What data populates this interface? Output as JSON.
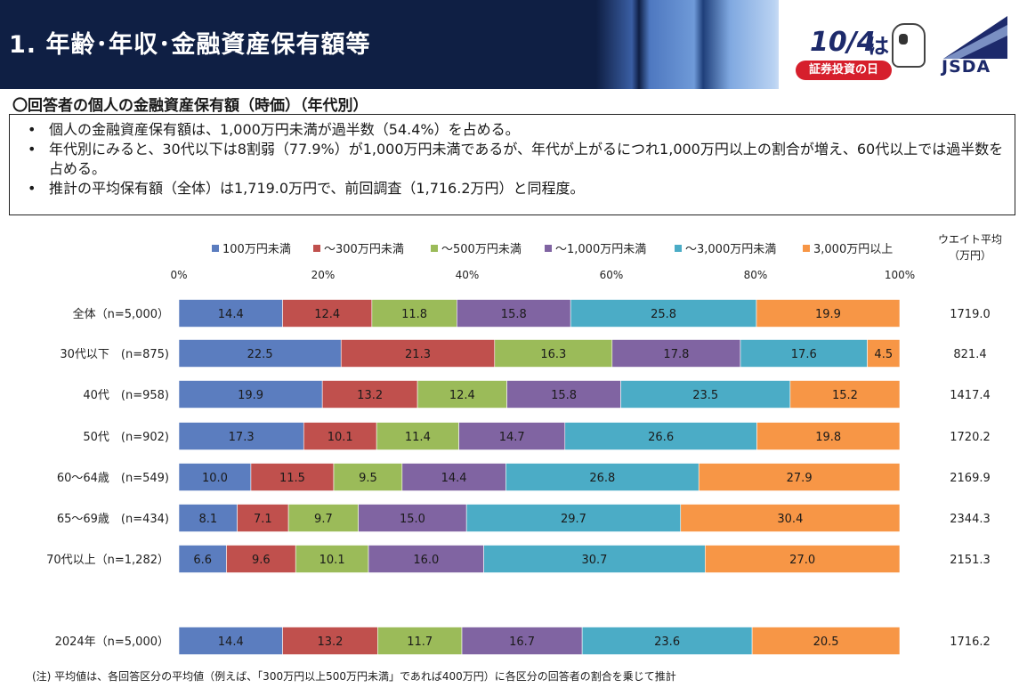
{
  "header": {
    "title": "1. 年齢･年収･金融資産保有額等",
    "logo_date": "10/4",
    "logo_wa": "は",
    "logo_event": "証券投資の日",
    "org": "JSDA"
  },
  "subtitle": "〇回答者の個人の金融資産保有額（時価）（年代別）",
  "summary": [
    "個人の金融資産保有額は、1,000万円未満が過半数（54.4%）を占める。",
    "年代別にみると、30代以下は8割弱（77.9%）が1,000万円未満であるが、年代が上がるにつれ1,000万円以上の割合が増え、60代以上では過半数を占める。",
    "推計の平均保有額（全体）は1,719.0万円で、前回調査（1,716.2万円）と同程度。"
  ],
  "unit_label_1": "ウエイト平均",
  "unit_label_2": "（万円）",
  "footnote": "(注) 平均値は、各回答区分の平均値（例えば、「300万円以上500万円未満」であれば400万円）に各区分の回答者の割合を乗じて推計",
  "colors": {
    "header_bg": "#0f1f44",
    "series": [
      "#5b7dbf",
      "#c0504d",
      "#9bbb59",
      "#8064a2",
      "#4bacc6",
      "#f79646"
    ]
  },
  "chart_data": {
    "type": "bar",
    "orientation": "horizontal-stacked-100",
    "xlim": [
      0,
      100
    ],
    "ticks": [
      "0%",
      "20%",
      "40%",
      "60%",
      "80%",
      "100%"
    ],
    "tick_values": [
      0,
      20,
      40,
      60,
      80,
      100
    ],
    "legend": [
      "100万円未満",
      "～300万円未満",
      "～500万円未満",
      "～1,000万円未満",
      "～3,000万円未満",
      "3,000万円以上"
    ],
    "rows": [
      {
        "label": "全体（n=5,000）",
        "values": [
          "14.4",
          "12.4",
          "11.8",
          "15.8",
          "25.8",
          "19.9"
        ],
        "avg": "1719.0"
      },
      {
        "label": "30代以下　(n=875)",
        "values": [
          "22.5",
          "21.3",
          "16.3",
          "17.8",
          "17.6",
          "4.5"
        ],
        "avg": "821.4"
      },
      {
        "label": "40代　(n=958)",
        "values": [
          "19.9",
          "13.2",
          "12.4",
          "15.8",
          "23.5",
          "15.2"
        ],
        "avg": "1417.4"
      },
      {
        "label": "50代　(n=902)",
        "values": [
          "17.3",
          "10.1",
          "11.4",
          "14.7",
          "26.6",
          "19.8"
        ],
        "avg": "1720.2"
      },
      {
        "label": "60～64歳　(n=549)",
        "values": [
          "10.0",
          "11.5",
          "9.5",
          "14.4",
          "26.8",
          "27.9"
        ],
        "avg": "2169.9"
      },
      {
        "label": "65～69歳　(n=434)",
        "values": [
          "8.1",
          "7.1",
          "9.7",
          "15.0",
          "29.7",
          "30.4"
        ],
        "avg": "2344.3"
      },
      {
        "label": "70代以上（n=1,282）",
        "values": [
          "6.6",
          "9.6",
          "10.1",
          "16.0",
          "30.7",
          "27.0"
        ],
        "avg": "2151.3"
      },
      {
        "label": "2024年（n=5,000）",
        "values": [
          "14.4",
          "13.2",
          "11.7",
          "16.7",
          "23.6",
          "20.5"
        ],
        "avg": "1716.2"
      }
    ]
  }
}
